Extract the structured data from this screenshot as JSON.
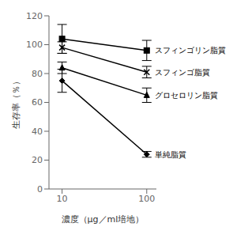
{
  "chart_data": {
    "type": "line",
    "x": [
      10,
      100
    ],
    "series": [
      {
        "name": "スフィンゴリン脂質",
        "color": "#000000",
        "marker": "square",
        "values": [
          104,
          96
        ],
        "error_lo": [
          10,
          7
        ],
        "error_hi": [
          10,
          7
        ]
      },
      {
        "name": "スフィンゴ脂質",
        "color": "#000000",
        "marker": "x",
        "values": [
          98,
          81
        ],
        "error_lo": [
          4,
          4
        ],
        "error_hi": [
          4,
          4
        ]
      },
      {
        "name": "グロセロリン脂質",
        "color": "#000000",
        "marker": "triangle",
        "values": [
          84,
          65
        ],
        "error_lo": [
          4,
          5
        ],
        "error_hi": [
          4,
          5
        ]
      },
      {
        "name": "単純脂質",
        "color": "#000000",
        "marker": "diamond",
        "values": [
          75,
          24
        ],
        "error_lo": [
          8,
          2
        ],
        "error_hi": [
          8,
          2
        ]
      }
    ],
    "xlabel": "濃度（μg／ml培地）",
    "ylabel": "生存率（％）",
    "xlim": [
      7,
      130
    ],
    "xticks": [
      10,
      100
    ],
    "ylim": [
      0,
      120
    ],
    "yticks": [
      0,
      20,
      40,
      60,
      80,
      100,
      120
    ],
    "log": "x",
    "grid": false
  }
}
